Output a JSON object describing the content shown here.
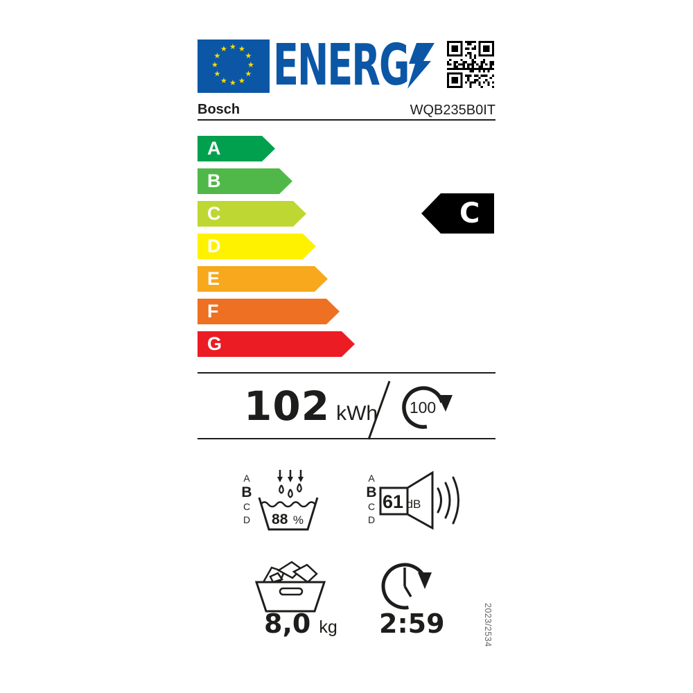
{
  "header": {
    "logo_text": "ENERG",
    "brand": "Bosch",
    "model": "WQB235B0IT"
  },
  "scale": {
    "classes": [
      {
        "label": "A",
        "color": "#00a04e"
      },
      {
        "label": "B",
        "color": "#50b848"
      },
      {
        "label": "C",
        "color": "#bed732"
      },
      {
        "label": "D",
        "color": "#fff200"
      },
      {
        "label": "E",
        "color": "#f7a81d"
      },
      {
        "label": "F",
        "color": "#ee7023"
      },
      {
        "label": "G",
        "color": "#ec1c24"
      }
    ],
    "rating": "C"
  },
  "energy": {
    "value": "102",
    "unit": "kWh",
    "per_cycles": "100"
  },
  "condensation": {
    "scale": [
      "A",
      "B",
      "C",
      "D"
    ],
    "rating": "B",
    "value": "88",
    "unit": "%"
  },
  "noise": {
    "scale": [
      "A",
      "B",
      "C",
      "D"
    ],
    "rating": "B",
    "value": "61",
    "unit": "dB"
  },
  "capacity": {
    "value": "8,0",
    "unit": "kg"
  },
  "cycle_duration": {
    "value": "2:59"
  },
  "regulation_number": "2023/2534",
  "colors": {
    "eu_blue": "#0b57a6",
    "star_yellow": "#ffdd00",
    "indicator_black": "#000000",
    "text": "#1d1d1b"
  }
}
